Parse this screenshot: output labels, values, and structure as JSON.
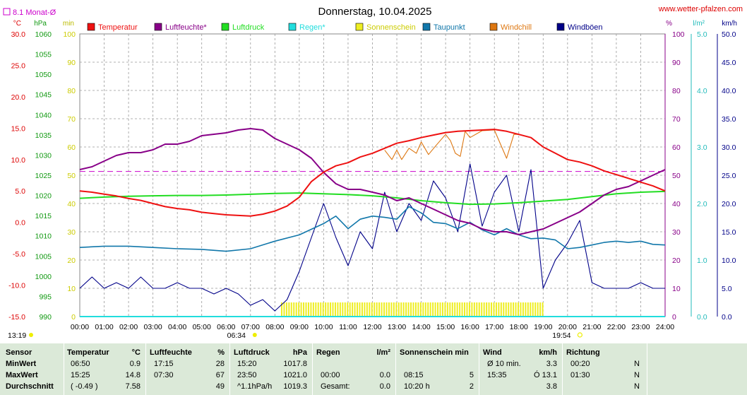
{
  "title": "Donnerstag, 10.04.2025",
  "site": "www.wetter-pfalzen.com",
  "monthly_avg_label": "8.1 Monat-Ø",
  "units": {
    "temp": "°C",
    "press": "hPa",
    "sun": "min",
    "hum": "%",
    "rain": "l/m²",
    "wind": "km/h"
  },
  "legend": [
    {
      "label": "Temperatur",
      "color": "#ee1111"
    },
    {
      "label": "Luftfeuchte*",
      "color": "#880088"
    },
    {
      "label": "Luftdruck",
      "color": "#22dd22"
    },
    {
      "label": "Regen*",
      "color": "#22dddd"
    },
    {
      "label": "Sonnenschein",
      "color": "#eeee22"
    },
    {
      "label": "Taupunkt",
      "color": "#1177aa"
    },
    {
      "label": "Windchill",
      "color": "#dd7711"
    },
    {
      "label": "Windböen",
      "color": "#000088"
    }
  ],
  "axes": {
    "temp": [
      "30.0",
      "25.0",
      "20.0",
      "15.0",
      "10.0",
      "5.0",
      "0.0",
      "-5.0",
      "-10.0",
      "-15.0"
    ],
    "press": [
      "1060",
      "1055",
      "1050",
      "1045",
      "1040",
      "1035",
      "1030",
      "1025",
      "1020",
      "1015",
      "1010",
      "1005",
      "1000",
      "995",
      "990"
    ],
    "sun": [
      "100",
      "90",
      "80",
      "70",
      "60",
      "50",
      "40",
      "30",
      "20",
      "10",
      "0"
    ],
    "hum": [
      "100",
      "90",
      "80",
      "70",
      "60",
      "50",
      "40",
      "30",
      "20",
      "10",
      "0"
    ],
    "rain": [
      "5.0",
      "4.0",
      "3.0",
      "2.0",
      "1.0",
      "0.0"
    ],
    "wind": [
      "50.0",
      "45.0",
      "40.0",
      "35.0",
      "30.0",
      "25.0",
      "20.0",
      "15.0",
      "10.0",
      "5.0",
      "0.0"
    ],
    "x": [
      "00:00",
      "01:00",
      "02:00",
      "03:00",
      "04:00",
      "05:00",
      "06:00",
      "07:00",
      "08:00",
      "09:00",
      "10:00",
      "11:00",
      "12:00",
      "13:00",
      "14:00",
      "15:00",
      "16:00",
      "17:00",
      "18:00",
      "19:00",
      "20:00",
      "21:00",
      "22:00",
      "23:00",
      "24:00"
    ]
  },
  "astro": {
    "sunrise": "06:34",
    "sunset": "19:54",
    "moonrise": "13:19"
  },
  "chart_data": {
    "type": "line",
    "title": "Donnerstag, 10.04.2025",
    "x_unit": "hour",
    "xlim": [
      0,
      24
    ],
    "monthly_avg_temp": 8.1,
    "series": [
      {
        "name": "Temperatur",
        "axis": "temp",
        "ylim": [
          -15,
          30
        ],
        "x": [
          0,
          0.5,
          1,
          1.5,
          2,
          2.5,
          3,
          3.5,
          4,
          4.5,
          5,
          5.5,
          6,
          6.5,
          7,
          7.5,
          8,
          8.5,
          9,
          9.5,
          10,
          10.5,
          11,
          11.5,
          12,
          12.5,
          13,
          13.5,
          14,
          14.5,
          15,
          15.5,
          16,
          16.5,
          17,
          17.5,
          18,
          18.5,
          19,
          19.5,
          20,
          20.5,
          21,
          21.5,
          22,
          22.5,
          23,
          23.5,
          24
        ],
        "y": [
          5,
          4.8,
          4.5,
          4.2,
          3.8,
          3.5,
          3,
          2.5,
          2.2,
          2,
          1.6,
          1.4,
          1.2,
          1.1,
          1,
          1.3,
          1.8,
          2.6,
          4,
          6.5,
          8,
          9,
          9.5,
          10.4,
          11,
          11.8,
          12.6,
          13,
          13.5,
          13.9,
          14.3,
          14.5,
          14.6,
          14.7,
          14.8,
          14.5,
          14,
          13.5,
          12,
          11,
          10,
          9.6,
          9,
          8.2,
          7.6,
          7,
          6.4,
          5.8,
          5
        ]
      },
      {
        "name": "Luftfeuchte*",
        "axis": "hum",
        "ylim": [
          0,
          100
        ],
        "x": [
          0,
          0.5,
          1,
          1.5,
          2,
          2.5,
          3,
          3.5,
          4,
          4.5,
          5,
          5.5,
          6,
          6.5,
          7,
          7.5,
          8,
          8.5,
          9,
          9.5,
          10,
          10.5,
          11,
          11.5,
          12,
          12.5,
          13,
          13.5,
          14,
          14.5,
          15,
          15.5,
          16,
          16.5,
          17,
          17.5,
          18,
          18.5,
          19,
          19.5,
          20,
          20.5,
          21,
          21.5,
          22,
          22.5,
          23,
          23.5,
          24
        ],
        "y": [
          52,
          53,
          55,
          57,
          58,
          58,
          59,
          61,
          61,
          62,
          64,
          64.5,
          65,
          66,
          66.5,
          66,
          63,
          61,
          59,
          56,
          51,
          47,
          45,
          45,
          44,
          43,
          41,
          42,
          40,
          38,
          36,
          34,
          33,
          31,
          30,
          30,
          29,
          30,
          31,
          33,
          35,
          37,
          40,
          43,
          45,
          46,
          48,
          50,
          52
        ]
      },
      {
        "name": "Luftdruck",
        "axis": "press",
        "ylim": [
          990,
          1060
        ],
        "x": [
          0,
          1,
          2,
          3,
          4,
          5,
          6,
          7,
          8,
          9,
          10,
          11,
          12,
          13,
          14,
          15,
          16,
          17,
          18,
          19,
          20,
          21,
          22,
          23,
          24
        ],
        "y": [
          1019.3,
          1019.6,
          1019.8,
          1019.9,
          1020,
          1020,
          1020.1,
          1020.3,
          1020.5,
          1020.6,
          1020.4,
          1020.2,
          1019.9,
          1019.4,
          1018.7,
          1018.2,
          1017.8,
          1017.9,
          1018.2,
          1018.6,
          1019,
          1019.7,
          1020.4,
          1020.8,
          1021
        ]
      },
      {
        "name": "Taupunkt",
        "axis": "temp",
        "ylim": [
          -15,
          30
        ],
        "x": [
          0,
          1,
          2,
          3,
          4,
          5,
          6,
          7,
          8,
          9,
          10,
          10.5,
          11,
          11.5,
          12,
          12.5,
          13,
          13.5,
          14,
          14.5,
          15,
          15.5,
          16,
          16.5,
          17,
          17.5,
          18,
          18.5,
          19,
          19.5,
          20,
          20.5,
          21,
          21.5,
          22,
          22.5,
          23,
          23.5,
          24
        ],
        "y": [
          -4,
          -3.8,
          -3.8,
          -4,
          -4.2,
          -4.3,
          -4.6,
          -4.2,
          -3,
          -2,
          -0.2,
          1,
          -1,
          0.5,
          1,
          0.8,
          0.5,
          2.5,
          1.5,
          0,
          -0.2,
          -1,
          0,
          -1.2,
          -2,
          -1,
          -2,
          -2.6,
          -2.5,
          -2.8,
          -4.2,
          -4,
          -3.6,
          -3.2,
          -3,
          -3.2,
          -3,
          -3.5,
          -3.6
        ]
      },
      {
        "name": "Windböen",
        "axis": "wind",
        "ylim": [
          0,
          50
        ],
        "x": [
          0,
          0.5,
          1,
          1.5,
          2,
          2.5,
          3,
          3.5,
          4,
          4.5,
          5,
          5.5,
          6,
          6.5,
          7,
          7.5,
          8,
          8.5,
          9,
          9.5,
          10,
          10.5,
          11,
          11.5,
          12,
          12.5,
          13,
          13.5,
          14,
          14.5,
          15,
          15.5,
          16,
          16.5,
          17,
          17.5,
          18,
          18.5,
          19,
          19.5,
          20,
          20.5,
          21,
          21.5,
          22,
          22.5,
          23,
          23.5,
          24
        ],
        "y": [
          5,
          7,
          5,
          6,
          5,
          7,
          5,
          5,
          6,
          5,
          5,
          4,
          5,
          4,
          2,
          3,
          1,
          3,
          8,
          14,
          20,
          14,
          9,
          15,
          12,
          22,
          15,
          20,
          17,
          24,
          21,
          15,
          27,
          16,
          22,
          25,
          15,
          26,
          5,
          10,
          13,
          17,
          6,
          5,
          5,
          5,
          6,
          5,
          5
        ]
      },
      {
        "name": "Windchill",
        "axis": "temp",
        "ylim": [
          -15,
          30
        ],
        "x": [
          12.5,
          12.8,
          13,
          13.2,
          13.5,
          13.8,
          14,
          14.3,
          14.6,
          15,
          15.2,
          15.4,
          15.6,
          15.8,
          16,
          16.5,
          17,
          17.3,
          17.5,
          17.8,
          18
        ],
        "y": [
          11.5,
          10,
          11.5,
          10,
          11.8,
          11,
          12.8,
          10.8,
          12.2,
          14,
          13,
          11,
          10.5,
          14.5,
          13.5,
          14.6,
          14.7,
          12,
          10.2,
          14,
          14
        ]
      },
      {
        "name": "Sonnenschein",
        "axis": "sun",
        "ylim": [
          0,
          100
        ],
        "start": "08:15",
        "end": "19:00",
        "total": "10:20 h"
      }
    ]
  },
  "stats": {
    "headers": {
      "sensor": "Sensor",
      "temp": "Temperatur",
      "temp_u": "°C",
      "hum": "Luftfeuchte",
      "hum_u": "%",
      "press": "Luftdruck",
      "press_u": "hPa",
      "rain": "Regen",
      "rain_u": "l/m²",
      "sun": "Sonnenschein min",
      "wind": "Wind",
      "wind_u": "km/h",
      "dir": "Richtung"
    },
    "rows": [
      {
        "label": "MinWert",
        "temp_t": "06:50",
        "temp_v": "0.9",
        "hum_t": "17:15",
        "hum_v": "28",
        "press_t": "15:20",
        "press_v": "1017.8",
        "rain_t": "",
        "rain_v": "",
        "sun_t": "",
        "sun_v": "",
        "wind_t": "Ø 10 min.",
        "wind_v": "3.3",
        "dir_t": "00:20",
        "dir_v": "N"
      },
      {
        "label": "MaxWert",
        "temp_t": "15:25",
        "temp_v": "14.8",
        "hum_t": "07:30",
        "hum_v": "67",
        "press_t": "23:50",
        "press_v": "1021.0",
        "rain_t": "00:00",
        "rain_v": "0.0",
        "sun_t": "08:15",
        "sun_v": "5",
        "wind_t": "15:35",
        "wind_v": "Ó 13.1",
        "dir_t": "01:30",
        "dir_v": "N"
      },
      {
        "label": "Durchschnitt",
        "temp_t": "( -0.49 )",
        "temp_v": "7.58",
        "hum_t": "",
        "hum_v": "49",
        "press_t": "^1.1hPa/h",
        "press_v": "1019.3",
        "rain_t": "Gesamt:",
        "rain_v": "0.0",
        "sun_t": "10:20 h",
        "sun_v": "2",
        "wind_t": "",
        "wind_v": "3.8",
        "dir_t": "",
        "dir_v": "N"
      }
    ]
  }
}
